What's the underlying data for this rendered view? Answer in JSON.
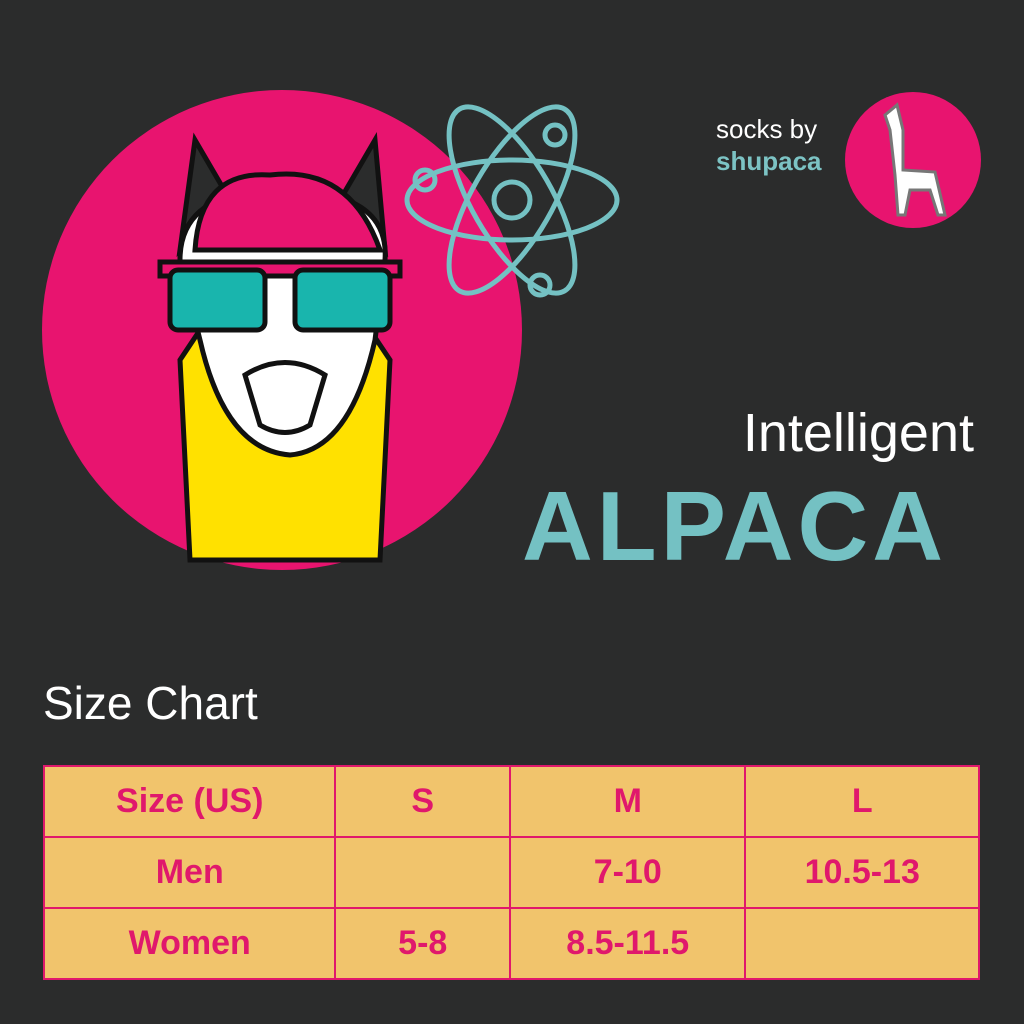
{
  "brand": {
    "prefix": "socks by",
    "name": "shupaca",
    "logo_icon": "alpaca-silhouette-icon"
  },
  "headline": {
    "line1": "Intelligent",
    "line2": "ALPACA"
  },
  "illustration": {
    "icons": [
      "alpaca-with-sunglasses",
      "atom-icon"
    ]
  },
  "size_chart": {
    "title": "Size Chart",
    "headers": [
      "Size (US)",
      "S",
      "M",
      "L"
    ],
    "rows": [
      [
        "Men",
        "",
        "7-10",
        "10.5-13"
      ],
      [
        "Women",
        "5-8",
        "8.5-11.5",
        ""
      ]
    ]
  },
  "colors": {
    "background": "#2b2c2c",
    "pink": "#e8146f",
    "teal": "#74c1c3",
    "table_fill": "#f1c46c",
    "yellow": "#ffe100"
  }
}
